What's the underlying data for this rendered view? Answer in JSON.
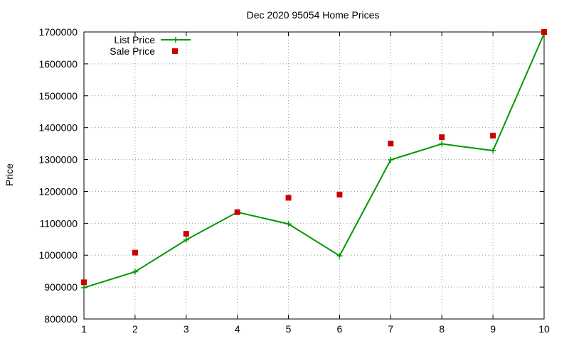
{
  "chart_data": {
    "type": "line",
    "title": "Dec 2020 95054 Home Prices",
    "xlabel": "",
    "ylabel": "Price",
    "xlim": [
      1,
      10
    ],
    "ylim": [
      800000,
      1700000
    ],
    "x": [
      1,
      2,
      3,
      4,
      5,
      6,
      7,
      8,
      9,
      10
    ],
    "x_ticks": [
      "1",
      "2",
      "3",
      "4",
      "5",
      "6",
      "7",
      "8",
      "9",
      "10"
    ],
    "y_ticks": [
      "800000",
      "900000",
      "1000000",
      "1100000",
      "1200000",
      "1300000",
      "1400000",
      "1500000",
      "1600000",
      "1700000"
    ],
    "y_tick_values": [
      800000,
      900000,
      1000000,
      1100000,
      1200000,
      1300000,
      1400000,
      1500000,
      1600000,
      1700000
    ],
    "grid": true,
    "legend_position": "top-left",
    "series": [
      {
        "name": "List Price",
        "style": "line-plus",
        "color": "#009900",
        "values": [
          898000,
          948000,
          1048000,
          1135000,
          1098000,
          998000,
          1299000,
          1349000,
          1328000,
          1695000
        ]
      },
      {
        "name": "Sale Price",
        "style": "square-points",
        "color": "#cc0000",
        "values": [
          915000,
          1008000,
          1067000,
          1135000,
          1180000,
          1190000,
          1350000,
          1370000,
          1375000,
          1700000
        ]
      }
    ]
  }
}
